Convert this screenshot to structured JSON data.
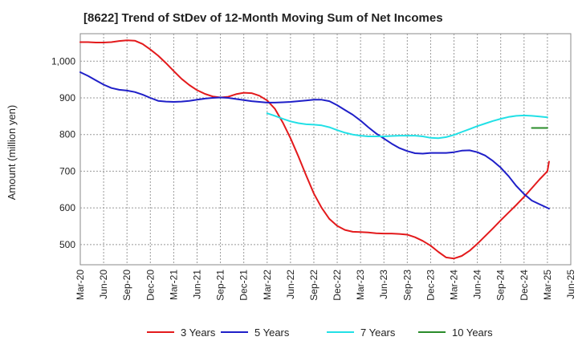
{
  "title": "[8622]  Trend of StDev of 12-Month Moving Sum of Net Incomes",
  "chart_data": {
    "type": "line",
    "title": "[8622]  Trend of StDev of 12-Month Moving Sum of Net Incomes",
    "xlabel": "",
    "ylabel": "Amount (million yen)",
    "x_ticks": [
      "Mar-20",
      "Jun-20",
      "Sep-20",
      "Dec-20",
      "Mar-21",
      "Jun-21",
      "Sep-21",
      "Dec-21",
      "Mar-22",
      "Jun-22",
      "Sep-22",
      "Dec-22",
      "Mar-23",
      "Jun-23",
      "Sep-23",
      "Dec-23",
      "Mar-24",
      "Jun-24",
      "Sep-24",
      "Dec-24",
      "Mar-25",
      "Jun-25"
    ],
    "y_ticks": [
      "500",
      "600",
      "700",
      "800",
      "900",
      "1,000"
    ],
    "y_tick_values": [
      500,
      600,
      700,
      800,
      900,
      1000
    ],
    "ylim": [
      445,
      1075
    ],
    "x_range": [
      "2020-03",
      "2025-06"
    ],
    "grid": true,
    "legend_position": "bottom",
    "series": [
      {
        "name": "3 Years",
        "color": "#e31a1c",
        "x": [
          "2020-03",
          "2020-04",
          "2020-05",
          "2020-06",
          "2020-07",
          "2020-08",
          "2020-09",
          "2020-10",
          "2020-11",
          "2020-12",
          "2021-01",
          "2021-02",
          "2021-03",
          "2021-04",
          "2021-05",
          "2021-06",
          "2021-07",
          "2021-08",
          "2021-09",
          "2021-10",
          "2021-11",
          "2021-12",
          "2022-01",
          "2022-02",
          "2022-03",
          "2022-04",
          "2022-05",
          "2022-06",
          "2022-07",
          "2022-08",
          "2022-09",
          "2022-10",
          "2022-11",
          "2022-12",
          "2023-01",
          "2023-02",
          "2023-03",
          "2023-04",
          "2023-05",
          "2023-06",
          "2023-07",
          "2023-08",
          "2023-09",
          "2023-10",
          "2023-11",
          "2023-12",
          "2024-01",
          "2024-02",
          "2024-03",
          "2024-04",
          "2024-05",
          "2024-06",
          "2024-07",
          "2024-08",
          "2024-09",
          "2024-10",
          "2024-11",
          "2024-12",
          "2025-01",
          "2025-02",
          "2025-03"
        ],
        "values": [
          1052,
          1052,
          1051,
          1051,
          1052,
          1055,
          1057,
          1056,
          1047,
          1032,
          1015,
          995,
          973,
          952,
          935,
          921,
          911,
          904,
          901,
          903,
          910,
          914,
          913,
          906,
          893,
          870,
          833,
          790,
          741,
          689,
          639,
          600,
          570,
          551,
          540,
          535,
          534,
          533,
          531,
          530,
          530,
          529,
          527,
          520,
          510,
          497,
          480,
          465,
          462,
          469,
          483,
          502,
          523,
          544,
          566,
          587,
          608,
          630,
          654,
          678,
          700
        ],
        "end_value": 726
      },
      {
        "name": "5 Years",
        "color": "#1f1fc8",
        "x": [
          "2020-03",
          "2020-04",
          "2020-05",
          "2020-06",
          "2020-07",
          "2020-08",
          "2020-09",
          "2020-10",
          "2020-11",
          "2020-12",
          "2021-01",
          "2021-02",
          "2021-03",
          "2021-04",
          "2021-05",
          "2021-06",
          "2021-07",
          "2021-08",
          "2021-09",
          "2021-10",
          "2021-11",
          "2021-12",
          "2022-01",
          "2022-02",
          "2022-03",
          "2022-04",
          "2022-05",
          "2022-06",
          "2022-07",
          "2022-08",
          "2022-09",
          "2022-10",
          "2022-11",
          "2022-12",
          "2023-01",
          "2023-02",
          "2023-03",
          "2023-04",
          "2023-05",
          "2023-06",
          "2023-07",
          "2023-08",
          "2023-09",
          "2023-10",
          "2023-11",
          "2023-12",
          "2024-01",
          "2024-02",
          "2024-03",
          "2024-04",
          "2024-05",
          "2024-06",
          "2024-07",
          "2024-08",
          "2024-09",
          "2024-10",
          "2024-11",
          "2024-12",
          "2025-01",
          "2025-02",
          "2025-03"
        ],
        "values": [
          970,
          960,
          948,
          936,
          927,
          922,
          920,
          916,
          909,
          900,
          892,
          890,
          889,
          890,
          892,
          895,
          898,
          900,
          901,
          900,
          897,
          894,
          891,
          889,
          887,
          887,
          888,
          889,
          891,
          893,
          895,
          895,
          891,
          880,
          867,
          854,
          838,
          820,
          803,
          789,
          775,
          763,
          755,
          749,
          748,
          750,
          750,
          750,
          752,
          756,
          757,
          752,
          743,
          728,
          710,
          687,
          660,
          638,
          620,
          610,
          600
        ],
        "end_value": 598
      },
      {
        "name": "7 Years",
        "color": "#22e0e6",
        "x": [
          "2022-03",
          "2022-04",
          "2022-05",
          "2022-06",
          "2022-07",
          "2022-08",
          "2022-09",
          "2022-10",
          "2022-11",
          "2022-12",
          "2023-01",
          "2023-02",
          "2023-03",
          "2023-04",
          "2023-05",
          "2023-06",
          "2023-07",
          "2023-08",
          "2023-09",
          "2023-10",
          "2023-11",
          "2023-12",
          "2024-01",
          "2024-02",
          "2024-03",
          "2024-04",
          "2024-05",
          "2024-06",
          "2024-07",
          "2024-08",
          "2024-09",
          "2024-10",
          "2024-11",
          "2024-12",
          "2025-01",
          "2025-02",
          "2025-03"
        ],
        "values": [
          858,
          851,
          843,
          836,
          831,
          828,
          827,
          825,
          820,
          812,
          805,
          800,
          797,
          795,
          795,
          795,
          796,
          797,
          797,
          797,
          795,
          791,
          790,
          793,
          799,
          807,
          815,
          823,
          830,
          837,
          843,
          848,
          851,
          852,
          851,
          849,
          847
        ]
      },
      {
        "name": "10 Years",
        "color": "#2a8c2a",
        "x": [
          "2025-01",
          "2025-02",
          "2025-03"
        ],
        "values": [
          818,
          818,
          818
        ]
      }
    ]
  }
}
